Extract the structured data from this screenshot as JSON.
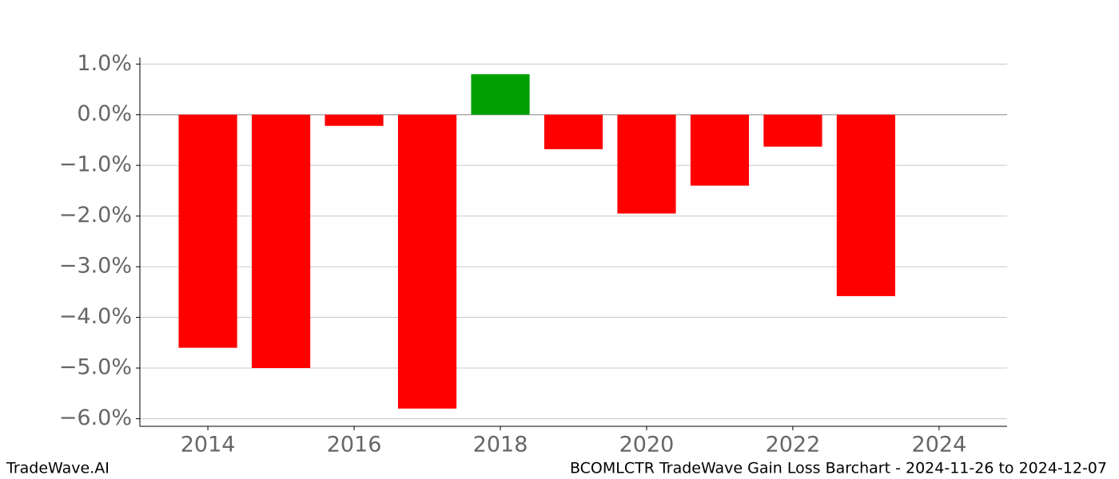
{
  "chart_data": {
    "type": "bar",
    "title": "BCOMLCTR TradeWave Gain Loss Barchart - 2024-11-26 to 2024-12-07",
    "watermark": "TradeWave.AI",
    "x": [
      2014,
      2015,
      2016,
      2017,
      2018,
      2019,
      2020,
      2021,
      2022,
      2023
    ],
    "values": [
      -4.6,
      -5.0,
      -0.22,
      -5.8,
      0.8,
      -0.68,
      -1.95,
      -1.4,
      -0.63,
      -3.58
    ],
    "colors": [
      "#ff0000",
      "#ff0000",
      "#ff0000",
      "#ff0000",
      "#00a000",
      "#ff0000",
      "#ff0000",
      "#ff0000",
      "#ff0000",
      "#ff0000"
    ],
    "bar_width": 0.8,
    "xlim": [
      2013.07,
      2024.93
    ],
    "xticks": [
      2014,
      2016,
      2018,
      2020,
      2022,
      2024
    ],
    "ylim": [
      -6.15,
      1.13
    ],
    "yticks": [
      {
        "value": 1,
        "label": "1.0%"
      },
      {
        "value": 0,
        "label": "0.0%"
      },
      {
        "value": -1,
        "label": "−1.0%"
      },
      {
        "value": -2,
        "label": "−2.0%"
      },
      {
        "value": -3,
        "label": "−3.0%"
      },
      {
        "value": -4,
        "label": "−4.0%"
      },
      {
        "value": -5,
        "label": "−5.0%"
      },
      {
        "value": -6,
        "label": "−6.0%"
      }
    ],
    "grid": true
  }
}
